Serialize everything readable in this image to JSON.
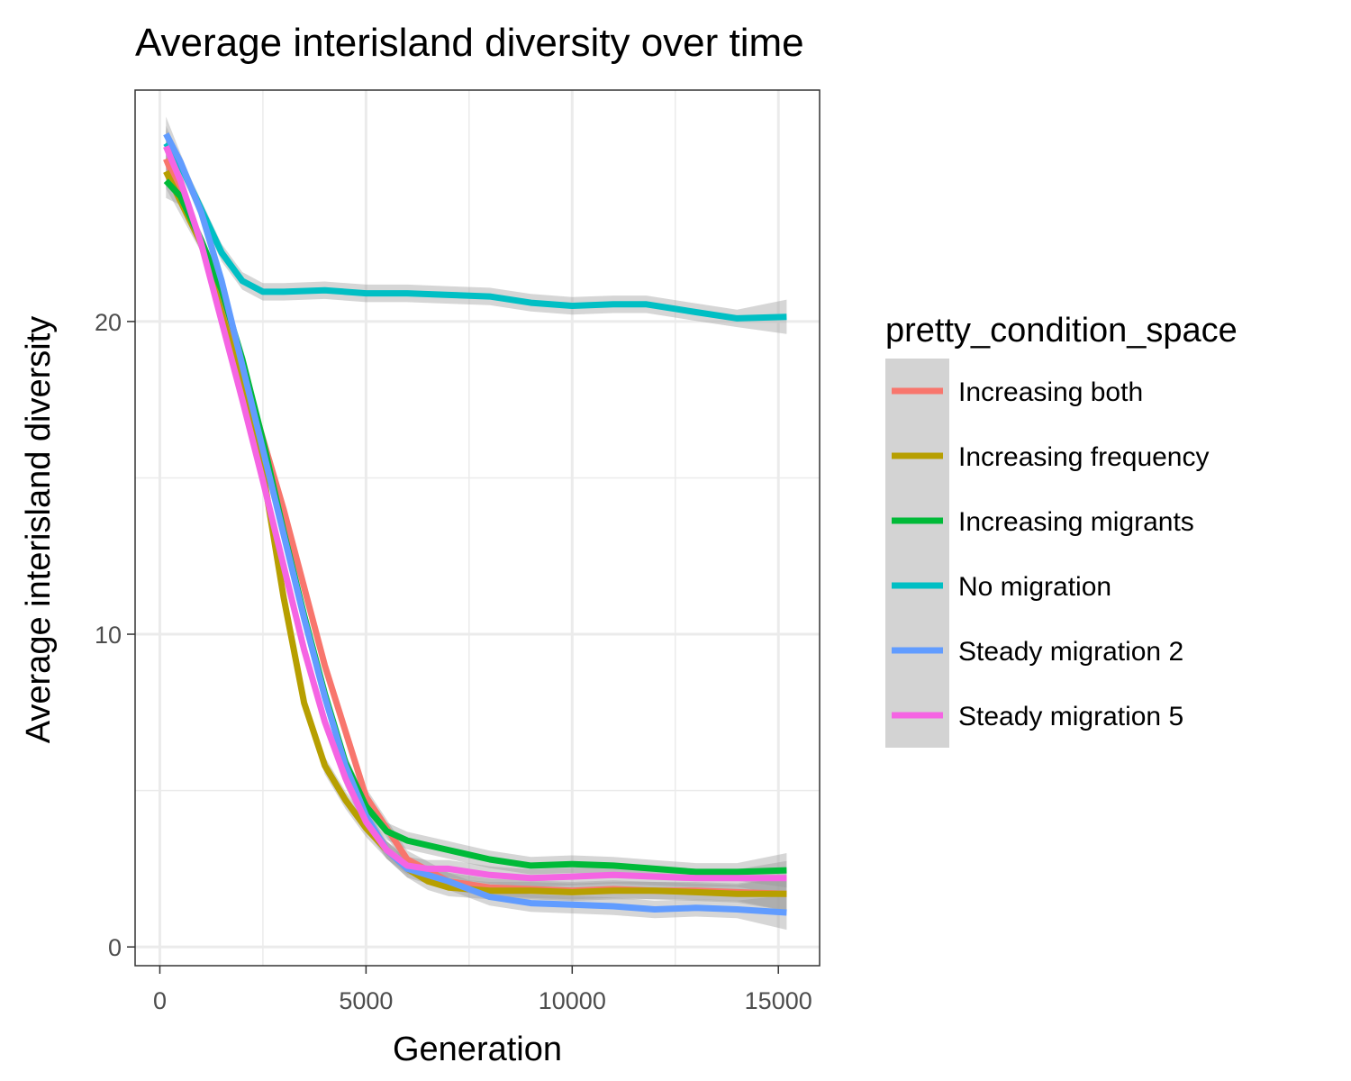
{
  "chart_data": {
    "type": "line",
    "title": "Average interisland diversity over time",
    "xlabel": "Generation",
    "ylabel": "Average interisland diversity",
    "xlim": [
      -600,
      16000
    ],
    "ylim": [
      -0.6,
      27.4
    ],
    "x_ticks": [
      0,
      5000,
      10000,
      15000
    ],
    "x_tick_labels": [
      "0",
      "5000",
      "10000",
      "15000"
    ],
    "y_ticks": [
      0,
      10,
      20
    ],
    "y_tick_labels": [
      "0",
      "10",
      "20"
    ],
    "grid": true,
    "legend": {
      "title": "pretty_condition_space",
      "position": "right"
    },
    "confidence_band": true,
    "series": [
      {
        "name": "Increasing both",
        "color": "#F8766D",
        "x": [
          150,
          1000,
          2000,
          3000,
          4000,
          5000,
          6000,
          7000,
          8000,
          9000,
          10000,
          11000,
          12000,
          13000,
          14000,
          15200
        ],
        "y": [
          25.2,
          22.5,
          18.5,
          14.0,
          9.0,
          4.8,
          2.8,
          2.1,
          1.9,
          1.85,
          1.8,
          1.85,
          1.8,
          1.8,
          1.75,
          1.7
        ]
      },
      {
        "name": "Increasing frequency",
        "color": "#B79F00",
        "x": [
          150,
          1000,
          2000,
          2500,
          3000,
          3500,
          4000,
          4500,
          5000,
          5500,
          6000,
          6500,
          7000,
          8000,
          9000,
          10000,
          11000,
          12000,
          13000,
          14000,
          15200
        ],
        "y": [
          24.8,
          22.5,
          18.0,
          15.2,
          11.2,
          7.8,
          5.8,
          4.7,
          3.8,
          3.1,
          2.5,
          2.1,
          1.9,
          1.8,
          1.8,
          1.75,
          1.8,
          1.8,
          1.75,
          1.7,
          1.7
        ]
      },
      {
        "name": "Increasing migrants",
        "color": "#00BA38",
        "x": [
          150,
          500,
          1000,
          1500,
          2000,
          2500,
          3000,
          3500,
          4000,
          4500,
          5000,
          5500,
          6000,
          7000,
          8000,
          9000,
          10000,
          11000,
          12000,
          13000,
          14000,
          15200
        ],
        "y": [
          24.5,
          24.0,
          22.6,
          21.0,
          18.8,
          16.2,
          13.3,
          10.6,
          8.1,
          5.9,
          4.5,
          3.7,
          3.4,
          3.1,
          2.8,
          2.6,
          2.65,
          2.6,
          2.5,
          2.4,
          2.4,
          2.45
        ]
      },
      {
        "name": "No migration",
        "color": "#00BFC4",
        "x": [
          150,
          500,
          1000,
          1500,
          2000,
          2500,
          3000,
          4000,
          5000,
          6000,
          7000,
          8000,
          9000,
          10000,
          11000,
          11800,
          13000,
          14000,
          15200
        ],
        "y": [
          25.7,
          25.0,
          23.6,
          22.2,
          21.3,
          20.95,
          20.95,
          21.0,
          20.9,
          20.9,
          20.85,
          20.8,
          20.6,
          20.5,
          20.55,
          20.55,
          20.3,
          20.1,
          20.15
        ]
      },
      {
        "name": "Steady migration 2",
        "color": "#619CFF",
        "x": [
          150,
          500,
          1000,
          1500,
          2000,
          2500,
          3000,
          3500,
          4000,
          4500,
          5000,
          5500,
          6000,
          7000,
          8000,
          9000,
          10000,
          11000,
          12000,
          13000,
          14000,
          15200
        ],
        "y": [
          26.0,
          25.1,
          23.5,
          21.3,
          18.6,
          15.9,
          13.2,
          10.5,
          8.0,
          5.8,
          4.2,
          3.1,
          2.5,
          2.1,
          1.6,
          1.4,
          1.35,
          1.3,
          1.2,
          1.25,
          1.2,
          1.1
        ]
      },
      {
        "name": "Steady migration 5",
        "color": "#F564E3",
        "x": [
          150,
          500,
          1000,
          1500,
          2000,
          2500,
          3000,
          3500,
          4000,
          4500,
          5000,
          5500,
          6000,
          6500,
          7000,
          8000,
          9000,
          10000,
          11000,
          12000,
          13000,
          14000,
          15200
        ],
        "y": [
          25.6,
          24.5,
          22.5,
          20.0,
          17.5,
          14.9,
          12.2,
          9.5,
          7.2,
          5.4,
          4.0,
          3.1,
          2.6,
          2.5,
          2.5,
          2.3,
          2.2,
          2.25,
          2.3,
          2.25,
          2.2,
          2.2,
          2.2
        ]
      }
    ]
  }
}
